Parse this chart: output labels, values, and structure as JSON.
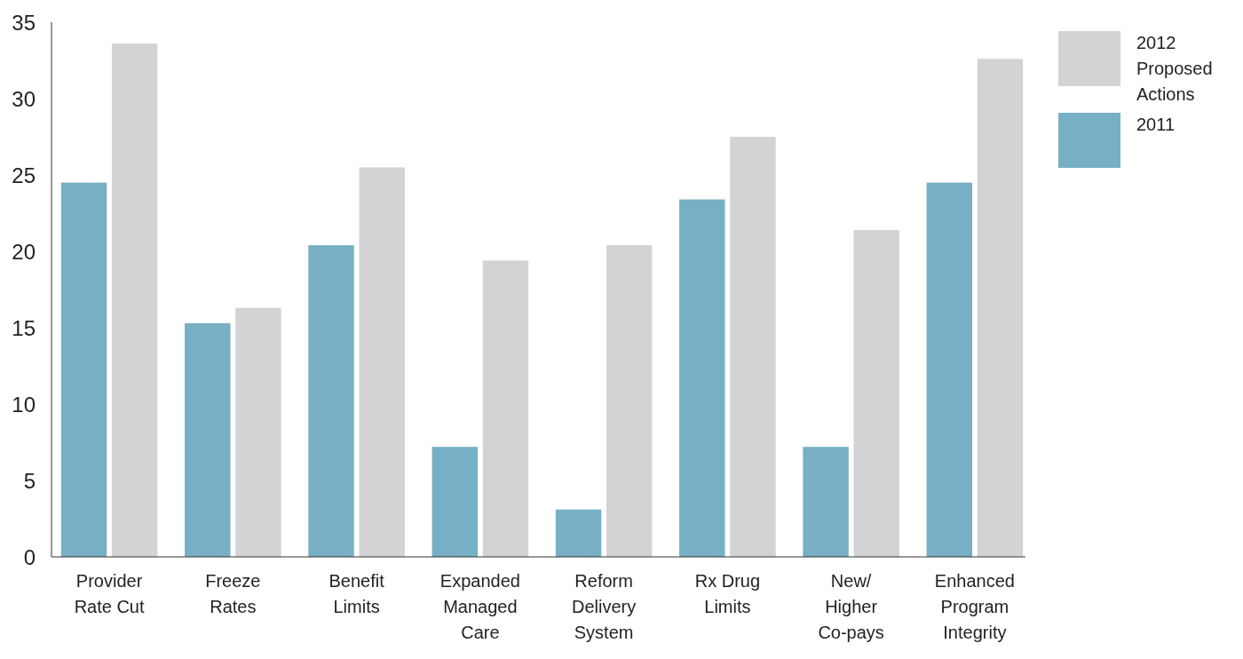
{
  "chart_data": {
    "type": "bar",
    "categories": [
      "Provider Rate Cut",
      "Freeze Rates",
      "Benefit Limits",
      "Expanded Managed Care",
      "Reform Delivery System",
      "Rx Drug Limits",
      "New/ Higher Co-pays",
      "Enhanced Program Integrity"
    ],
    "series": [
      {
        "name": "2011",
        "color": "#77b0c4",
        "values": [
          24.5,
          15.3,
          20.4,
          7.2,
          3.1,
          23.4,
          7.2,
          24.5
        ]
      },
      {
        "name": "2012 Proposed Actions",
        "color": "#d3d3d6",
        "values": [
          33.6,
          16.3,
          25.5,
          19.4,
          20.4,
          27.5,
          21.4,
          32.6
        ]
      }
    ],
    "ylim": [
      0,
      35
    ],
    "yticks": [
      0,
      5,
      10,
      15,
      20,
      25,
      30,
      35
    ],
    "grid": false,
    "legend": "top right"
  }
}
